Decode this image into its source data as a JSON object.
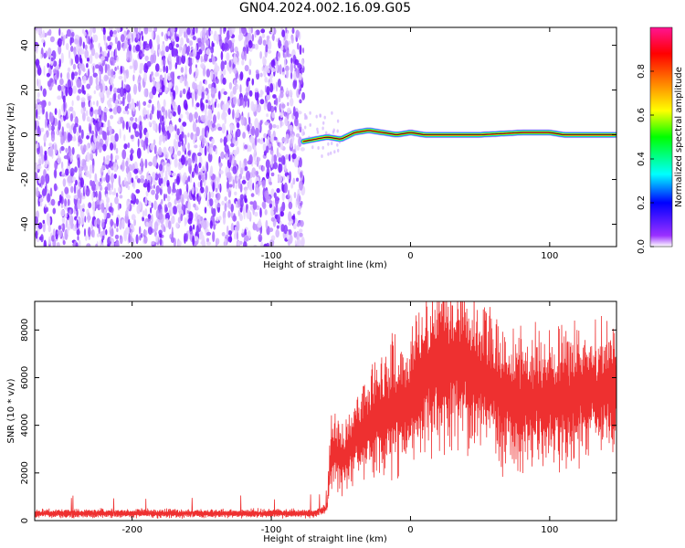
{
  "title": "GN04.2024.002.16.09.G05",
  "chart_data": [
    {
      "type": "heatmap",
      "xlabel": "Height of straight line (km)",
      "ylabel": "Frequency (Hz)",
      "xlim": [
        -270,
        148
      ],
      "ylim": [
        -50,
        48
      ],
      "x_ticks": [
        -200,
        -100,
        0,
        100
      ],
      "y_ticks": [
        -40,
        -20,
        0,
        20,
        40
      ],
      "noise_region_x": [
        -270,
        -77
      ],
      "signal_line": [
        {
          "x": -77,
          "y": -3
        },
        {
          "x": -60,
          "y": -1
        },
        {
          "x": -50,
          "y": -2
        },
        {
          "x": -40,
          "y": 1
        },
        {
          "x": -30,
          "y": 2
        },
        {
          "x": -20,
          "y": 1
        },
        {
          "x": -10,
          "y": 0
        },
        {
          "x": 0,
          "y": 1
        },
        {
          "x": 10,
          "y": 0
        },
        {
          "x": 50,
          "y": 0
        },
        {
          "x": 80,
          "y": 1
        },
        {
          "x": 100,
          "y": 1
        },
        {
          "x": 110,
          "y": 0
        },
        {
          "x": 148,
          "y": 0
        }
      ],
      "colorbar": {
        "label": "Normalized spectral amplitude",
        "range": [
          0,
          1
        ],
        "ticks": [
          0.0,
          0.2,
          0.4,
          0.6,
          0.8
        ],
        "tick_labels": [
          "0.0",
          "0.2",
          "0.4",
          "0.6",
          "0.8"
        ],
        "colors": [
          "#ffffff",
          "#9b30ff",
          "#0000ff",
          "#00ffff",
          "#00ff00",
          "#ffff00",
          "#ff8000",
          "#ff0000",
          "#ff1493"
        ]
      }
    },
    {
      "type": "line",
      "xlabel": "Height of straight line (km)",
      "ylabel": "SNR (10 * v/v)",
      "xlim": [
        -270,
        148
      ],
      "ylim": [
        0,
        9200
      ],
      "x_ticks": [
        -200,
        -100,
        0,
        100
      ],
      "y_ticks": [
        0,
        2000,
        4000,
        6000,
        8000
      ],
      "color": "#ee3030",
      "envelope": [
        {
          "x": -270,
          "y": 300
        },
        {
          "x": -100,
          "y": 300
        },
        {
          "x": -70,
          "y": 300
        },
        {
          "x": -60,
          "y": 500
        },
        {
          "x": -57,
          "y": 3000
        },
        {
          "x": -50,
          "y": 2500
        },
        {
          "x": -40,
          "y": 3400
        },
        {
          "x": -20,
          "y": 4500
        },
        {
          "x": 0,
          "y": 5200
        },
        {
          "x": 10,
          "y": 6000
        },
        {
          "x": 25,
          "y": 6600
        },
        {
          "x": 40,
          "y": 6500
        },
        {
          "x": 55,
          "y": 5800
        },
        {
          "x": 70,
          "y": 5100
        },
        {
          "x": 90,
          "y": 5000
        },
        {
          "x": 110,
          "y": 5100
        },
        {
          "x": 130,
          "y": 5400
        },
        {
          "x": 148,
          "y": 5500
        }
      ]
    }
  ]
}
